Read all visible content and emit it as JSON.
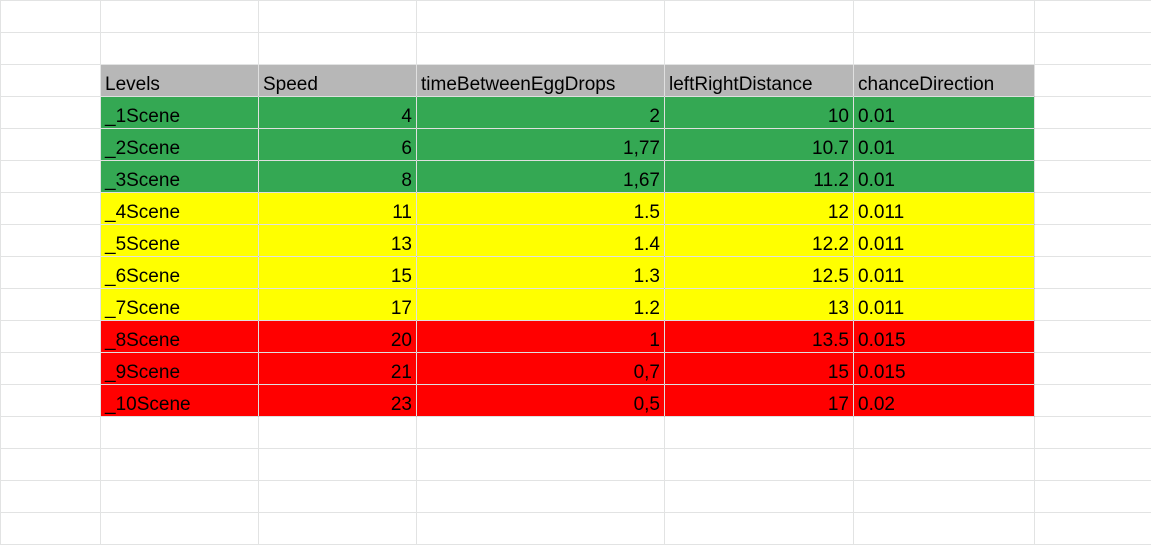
{
  "sheet": {
    "headers": [
      "Levels",
      "Speed",
      "timeBetweenEggDrops",
      "leftRightDistance",
      "chanceDirection"
    ],
    "header_fill": "#b7b7b7",
    "rows": [
      {
        "cells": [
          "_1Scene",
          "4",
          "2",
          "10",
          "0.01"
        ],
        "fill": "#34a853"
      },
      {
        "cells": [
          "_2Scene",
          "6",
          "1,77",
          "10.7",
          "0.01"
        ],
        "fill": "#34a853"
      },
      {
        "cells": [
          "_3Scene",
          "8",
          "1,67",
          "11.2",
          "0.01"
        ],
        "fill": "#34a853"
      },
      {
        "cells": [
          "_4Scene",
          "11",
          "1.5",
          "12",
          "0.011"
        ],
        "fill": "#ffff00"
      },
      {
        "cells": [
          "_5Scene",
          "13",
          "1.4",
          "12.2",
          "0.011"
        ],
        "fill": "#ffff00"
      },
      {
        "cells": [
          "_6Scene",
          "15",
          "1.3",
          "12.5",
          "0.011"
        ],
        "fill": "#ffff00"
      },
      {
        "cells": [
          "_7Scene",
          "17",
          "1.2",
          "13",
          "0.011"
        ],
        "fill": "#ffff00"
      },
      {
        "cells": [
          "_8Scene",
          "20",
          "1",
          "13.5",
          "0.015"
        ],
        "fill": "#ff0000"
      },
      {
        "cells": [
          "_9Scene",
          "21",
          "0,7",
          "15",
          "0.015"
        ],
        "fill": "#ff0000"
      },
      {
        "cells": [
          "_10Scene",
          "23",
          "0,5",
          "17",
          "0.02"
        ],
        "fill": "#ff0000"
      }
    ]
  }
}
